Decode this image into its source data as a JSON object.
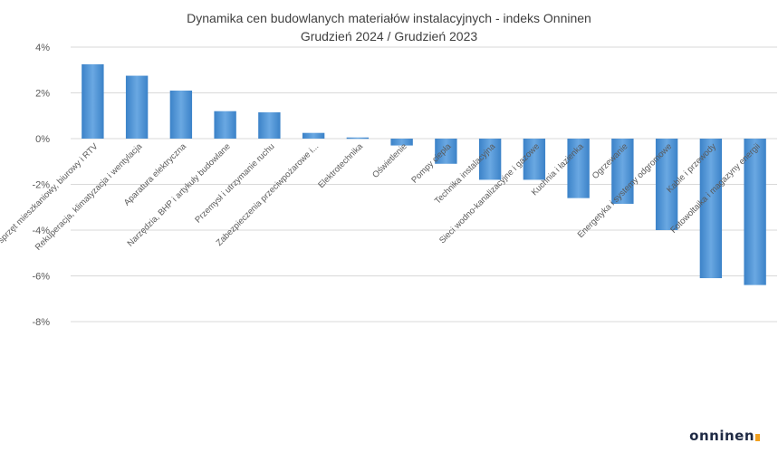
{
  "chart_data": {
    "type": "bar",
    "title": "Dynamika cen budowlanych materiałów instalacyjnych - indeks Onninen",
    "subtitle": "Grudzień 2024 / Grudzień 2023",
    "categories": [
      "Osprzęt mieszkaniowy, biurowy i RTV",
      "Rekuperacja, klimatyzacja i wentylacja",
      "Aparatura elektryczna",
      "Narzędzia, BHP i artykuły budowlane",
      "Przemysł i utrzymanie ruchu",
      "Zabezpieczenia przeciwpożarowe i...",
      "Elektrotechnika",
      "Oświetlenie",
      "Pompy ciepła",
      "Technika instalacyjna",
      "Sieci wodno-kanalizacyjne i gazowe",
      "Kuchnia i łazienka",
      "Ogrzewanie",
      "Energetyka i systemy odgromowe",
      "Kable i przewody",
      "Fotowoltaika i magazyny energii"
    ],
    "values": [
      3.25,
      2.75,
      2.1,
      1.2,
      1.15,
      0.25,
      0.05,
      -0.3,
      -1.1,
      -1.8,
      -1.8,
      -2.6,
      -2.85,
      -4.0,
      -6.1,
      -6.4
    ],
    "yticks": [
      "4%",
      "2%",
      "0%",
      "-2%",
      "-4%",
      "-6%",
      "-8%"
    ],
    "ylim": [
      -8,
      4
    ],
    "grid": true,
    "bar_color": "#4a8fd4"
  },
  "logo_text": "onninen"
}
